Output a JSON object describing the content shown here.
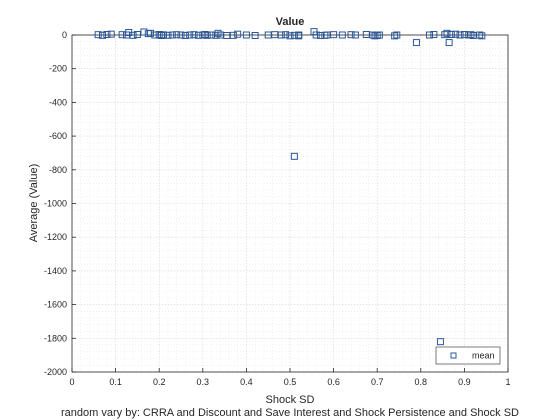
{
  "chart_data": {
    "type": "scatter",
    "title": "Value",
    "xlabel": "Shock SD",
    "ylabel": "Average (Value)",
    "footer": "random vary by: CRRA and Discount and Save Interest and Shock Persistence and Shock SD",
    "xlim": [
      0,
      1
    ],
    "ylim": [
      -2000,
      0
    ],
    "xticks": [
      0,
      0.1,
      0.2,
      0.3,
      0.4,
      0.5,
      0.6,
      0.7,
      0.8,
      0.9,
      1
    ],
    "xtick_labels": [
      "0",
      "0.1",
      "0.2",
      "0.3",
      "0.4",
      "0.5",
      "0.6",
      "0.7",
      "0.8",
      "0.9",
      "1"
    ],
    "yticks": [
      0,
      -200,
      -400,
      -600,
      -800,
      -1000,
      -1200,
      -1400,
      -1600,
      -1800,
      -2000
    ],
    "ytick_labels": [
      "0",
      "-200",
      "-400",
      "-600",
      "-800",
      "-1000",
      "-1200",
      "-1400",
      "-1600",
      "-1800",
      "-2000"
    ],
    "grid": true,
    "minor_grid": true,
    "legend_position": "bottom-right",
    "marker": "square-open",
    "color": "#2b5797",
    "series": [
      {
        "name": "mean",
        "points": [
          [
            0.06,
            2
          ],
          [
            0.07,
            -2
          ],
          [
            0.08,
            3
          ],
          [
            0.09,
            5
          ],
          [
            0.115,
            2
          ],
          [
            0.125,
            0
          ],
          [
            0.13,
            15
          ],
          [
            0.14,
            -2
          ],
          [
            0.15,
            3
          ],
          [
            0.165,
            18
          ],
          [
            0.175,
            8
          ],
          [
            0.18,
            10
          ],
          [
            0.19,
            0
          ],
          [
            0.2,
            3
          ],
          [
            0.205,
            -3
          ],
          [
            0.21,
            1
          ],
          [
            0.22,
            -2
          ],
          [
            0.23,
            0
          ],
          [
            0.24,
            2
          ],
          [
            0.25,
            0
          ],
          [
            0.26,
            -3
          ],
          [
            0.27,
            0
          ],
          [
            0.28,
            2
          ],
          [
            0.29,
            -2
          ],
          [
            0.3,
            0
          ],
          [
            0.305,
            3
          ],
          [
            0.31,
            -2
          ],
          [
            0.32,
            0
          ],
          [
            0.33,
            -2
          ],
          [
            0.335,
            10
          ],
          [
            0.34,
            0
          ],
          [
            0.355,
            -3
          ],
          [
            0.37,
            -2
          ],
          [
            0.38,
            5
          ],
          [
            0.4,
            0
          ],
          [
            0.42,
            -3
          ],
          [
            0.45,
            0
          ],
          [
            0.465,
            2
          ],
          [
            0.48,
            0
          ],
          [
            0.49,
            2
          ],
          [
            0.5,
            -5
          ],
          [
            0.51,
            -2
          ],
          [
            0.51,
            -720
          ],
          [
            0.52,
            -5
          ],
          [
            0.52,
            0
          ],
          [
            0.555,
            20
          ],
          [
            0.56,
            0
          ],
          [
            0.57,
            -3
          ],
          [
            0.58,
            -2
          ],
          [
            0.585,
            0
          ],
          [
            0.6,
            2
          ],
          [
            0.62,
            0
          ],
          [
            0.64,
            2
          ],
          [
            0.65,
            0
          ],
          [
            0.675,
            3
          ],
          [
            0.69,
            0
          ],
          [
            0.695,
            -5
          ],
          [
            0.7,
            -3
          ],
          [
            0.705,
            0
          ],
          [
            0.74,
            -5
          ],
          [
            0.745,
            0
          ],
          [
            0.79,
            -45
          ],
          [
            0.82,
            0
          ],
          [
            0.83,
            3
          ],
          [
            0.845,
            -1820
          ],
          [
            0.855,
            2
          ],
          [
            0.86,
            10
          ],
          [
            0.865,
            -45
          ],
          [
            0.87,
            3
          ],
          [
            0.88,
            5
          ],
          [
            0.89,
            0
          ],
          [
            0.9,
            3
          ],
          [
            0.91,
            0
          ],
          [
            0.915,
            2
          ],
          [
            0.92,
            -3
          ],
          [
            0.935,
            0
          ],
          [
            0.94,
            -5
          ]
        ]
      }
    ]
  }
}
